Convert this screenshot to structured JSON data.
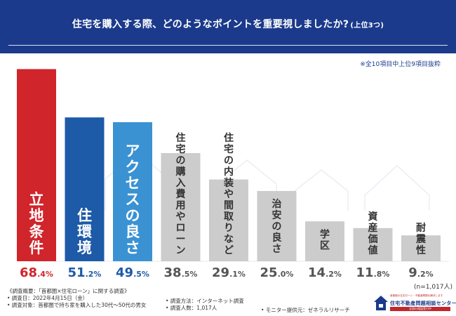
{
  "header": {
    "title": "住宅を購入する際、どのようなポイントを重要視しましたか?",
    "title_suffix": "(上位3つ)",
    "note": "※全10項目中上位9項目抜粋"
  },
  "colors": {
    "header_bg": "#1b3a8c",
    "top1": "#d0252b",
    "top2": "#1d5aa8",
    "top3": "#3a92d3",
    "other": "#cccccc",
    "value_red": "#d0252b",
    "value_blue": "#1d5aa8",
    "value_gray": "#555555"
  },
  "chart_data": {
    "type": "bar",
    "title": "住宅を購入する際、どのようなポイントを重要視しましたか?(上位3つ)",
    "unit": "%",
    "ylim": [
      0,
      70
    ],
    "categories": [
      "立地条件",
      "住環境",
      "アクセスの良さ",
      "住宅の購入費用やローン",
      "住宅の内装や間取りなど",
      "治安の良さ",
      "学区",
      "資産価値",
      "耐震性"
    ],
    "values": [
      68.4,
      51.2,
      49.5,
      38.5,
      29.1,
      25.0,
      14.2,
      11.8,
      9.2
    ],
    "value_labels": [
      "68.4%",
      "51.2%",
      "49.5%",
      "38.5%",
      "29.1%",
      "25.0%",
      "14.2%",
      "11.8%",
      "9.2%"
    ],
    "n_note": "(n=1,017人)"
  },
  "footer": {
    "survey_title": "《調査概要：「首都圏×住宅ローン」に関する調査》",
    "survey_date": "• 調査日：2022年4月15日（金）",
    "survey_target": "• 調査対象：首都圏で持ち家を購入した30代〜50代の男女",
    "survey_method": "• 調査方法：インターネット調査",
    "survey_count": "• 調査人数：1,017人",
    "monitor": "• モニター提供元：ゼネラルリサーチ"
  },
  "logo": {
    "name": "住宅不動産問題相談センター",
    "tagline": "首都圏の住宅ローン・不動産問題を解決します",
    "bar": "全国の相談受付中"
  }
}
